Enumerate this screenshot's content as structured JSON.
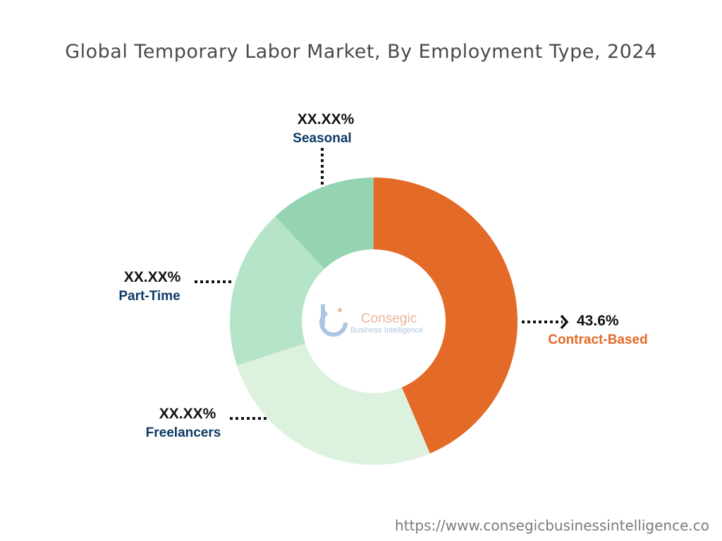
{
  "chart_data": {
    "type": "pie",
    "title": "Global Temporary Labor Market, By Employment Type, 2024",
    "categories": [
      "Contract-Based",
      "Freelancers",
      "Part-Time",
      "Seasonal"
    ],
    "series": [
      {
        "values": [
          43.6,
          26.4,
          18.0,
          12.0
        ],
        "labels": [
          "43.6%",
          "XX.XX%",
          "XX.XX%",
          "XX.XX%"
        ],
        "colors": [
          "#e36a27",
          "#dcf2de",
          "#b6e4c9",
          "#94d4b0"
        ],
        "label_colors": [
          "#e36a27",
          "#0d3a66",
          "#0d3a66",
          "#0d3a66"
        ]
      }
    ]
  },
  "logo": {
    "name": "Consegic",
    "subtitle": "Business Intelligence"
  },
  "source_url": "https://www.consegicbusinessintelligence.co"
}
